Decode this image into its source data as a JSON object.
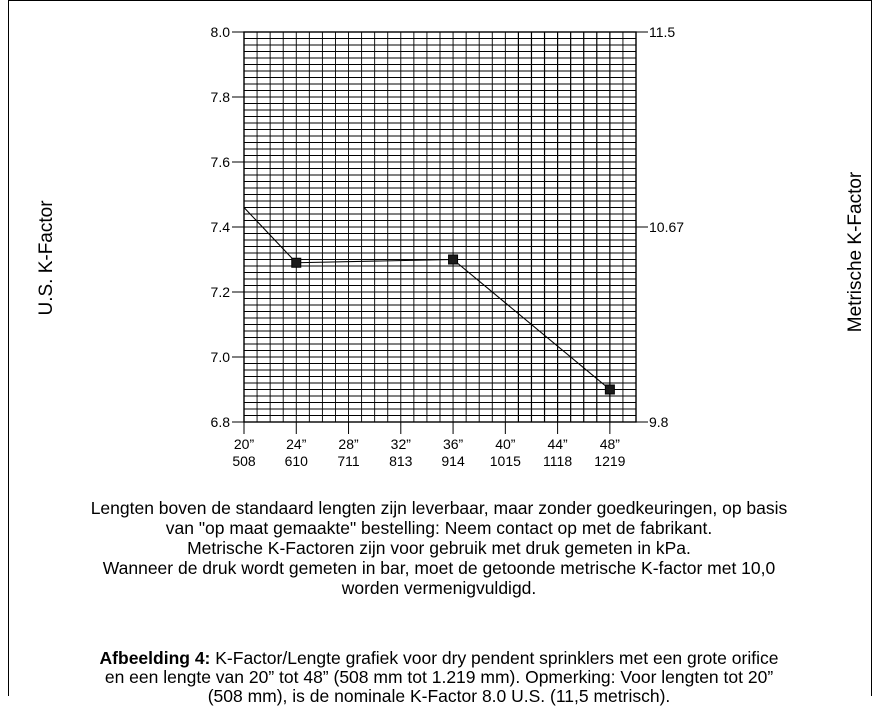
{
  "chart_data": {
    "type": "line",
    "title": "",
    "ylabel": "U.S. K-Factor",
    "ylabel_right": "Metrische K-Factor",
    "ylim": [
      6.8,
      8.0
    ],
    "y_ticks": [
      "6.8",
      "7.0",
      "7.2",
      "7.4",
      "7.6",
      "7.8",
      "8.0"
    ],
    "y_ticks_right": [
      {
        "value": 6.8,
        "label": "9.8"
      },
      {
        "value": 7.4,
        "label": "10.67"
      },
      {
        "value": 8.0,
        "label": "11.5"
      }
    ],
    "xlim": [
      20,
      50
    ],
    "x_ticks": [
      {
        "value": 20,
        "inch": "20”",
        "mm": "508"
      },
      {
        "value": 24,
        "inch": "24”",
        "mm": "610"
      },
      {
        "value": 28,
        "inch": "28”",
        "mm": "711"
      },
      {
        "value": 32,
        "inch": "32”",
        "mm": "813"
      },
      {
        "value": 36,
        "inch": "36”",
        "mm": "914"
      },
      {
        "value": 40,
        "inch": "40”",
        "mm": "1015"
      },
      {
        "value": 44,
        "inch": "44”",
        "mm": "1118"
      },
      {
        "value": 48,
        "inch": "48”",
        "mm": "1219"
      }
    ],
    "grid": true,
    "series": [
      {
        "x": [
          20,
          24,
          36,
          48
        ],
        "y": [
          7.46,
          7.29,
          7.3,
          6.9
        ],
        "markers": [
          false,
          true,
          true,
          true
        ]
      }
    ]
  },
  "notes": [
    "Lengten boven de standaard lengten zijn leverbaar, maar zonder goedkeuringen, op basis",
    "van \"op maat gemaakte\" bestelling: Neem contact op met de fabrikant.",
    "Metrische K-Factoren zijn voor gebruik met druk gemeten in kPa.",
    "Wanneer de druk wordt gemeten in bar, moet de getoonde metrische K-factor met 10,0",
    "worden vermenigvuldigd."
  ],
  "caption": {
    "label": "Afbeelding 4:",
    "line1": " K-Factor/Lengte grafiek voor dry pendent sprinklers met een grote orifice",
    "line2": "en een lengte van 20” tot 48” (508 mm tot 1.219 mm). Opmerking: Voor lengten tot 20”",
    "line3": "(508 mm), is de nominale K-Factor 8.0 U.S. (11,5 metrisch)."
  }
}
